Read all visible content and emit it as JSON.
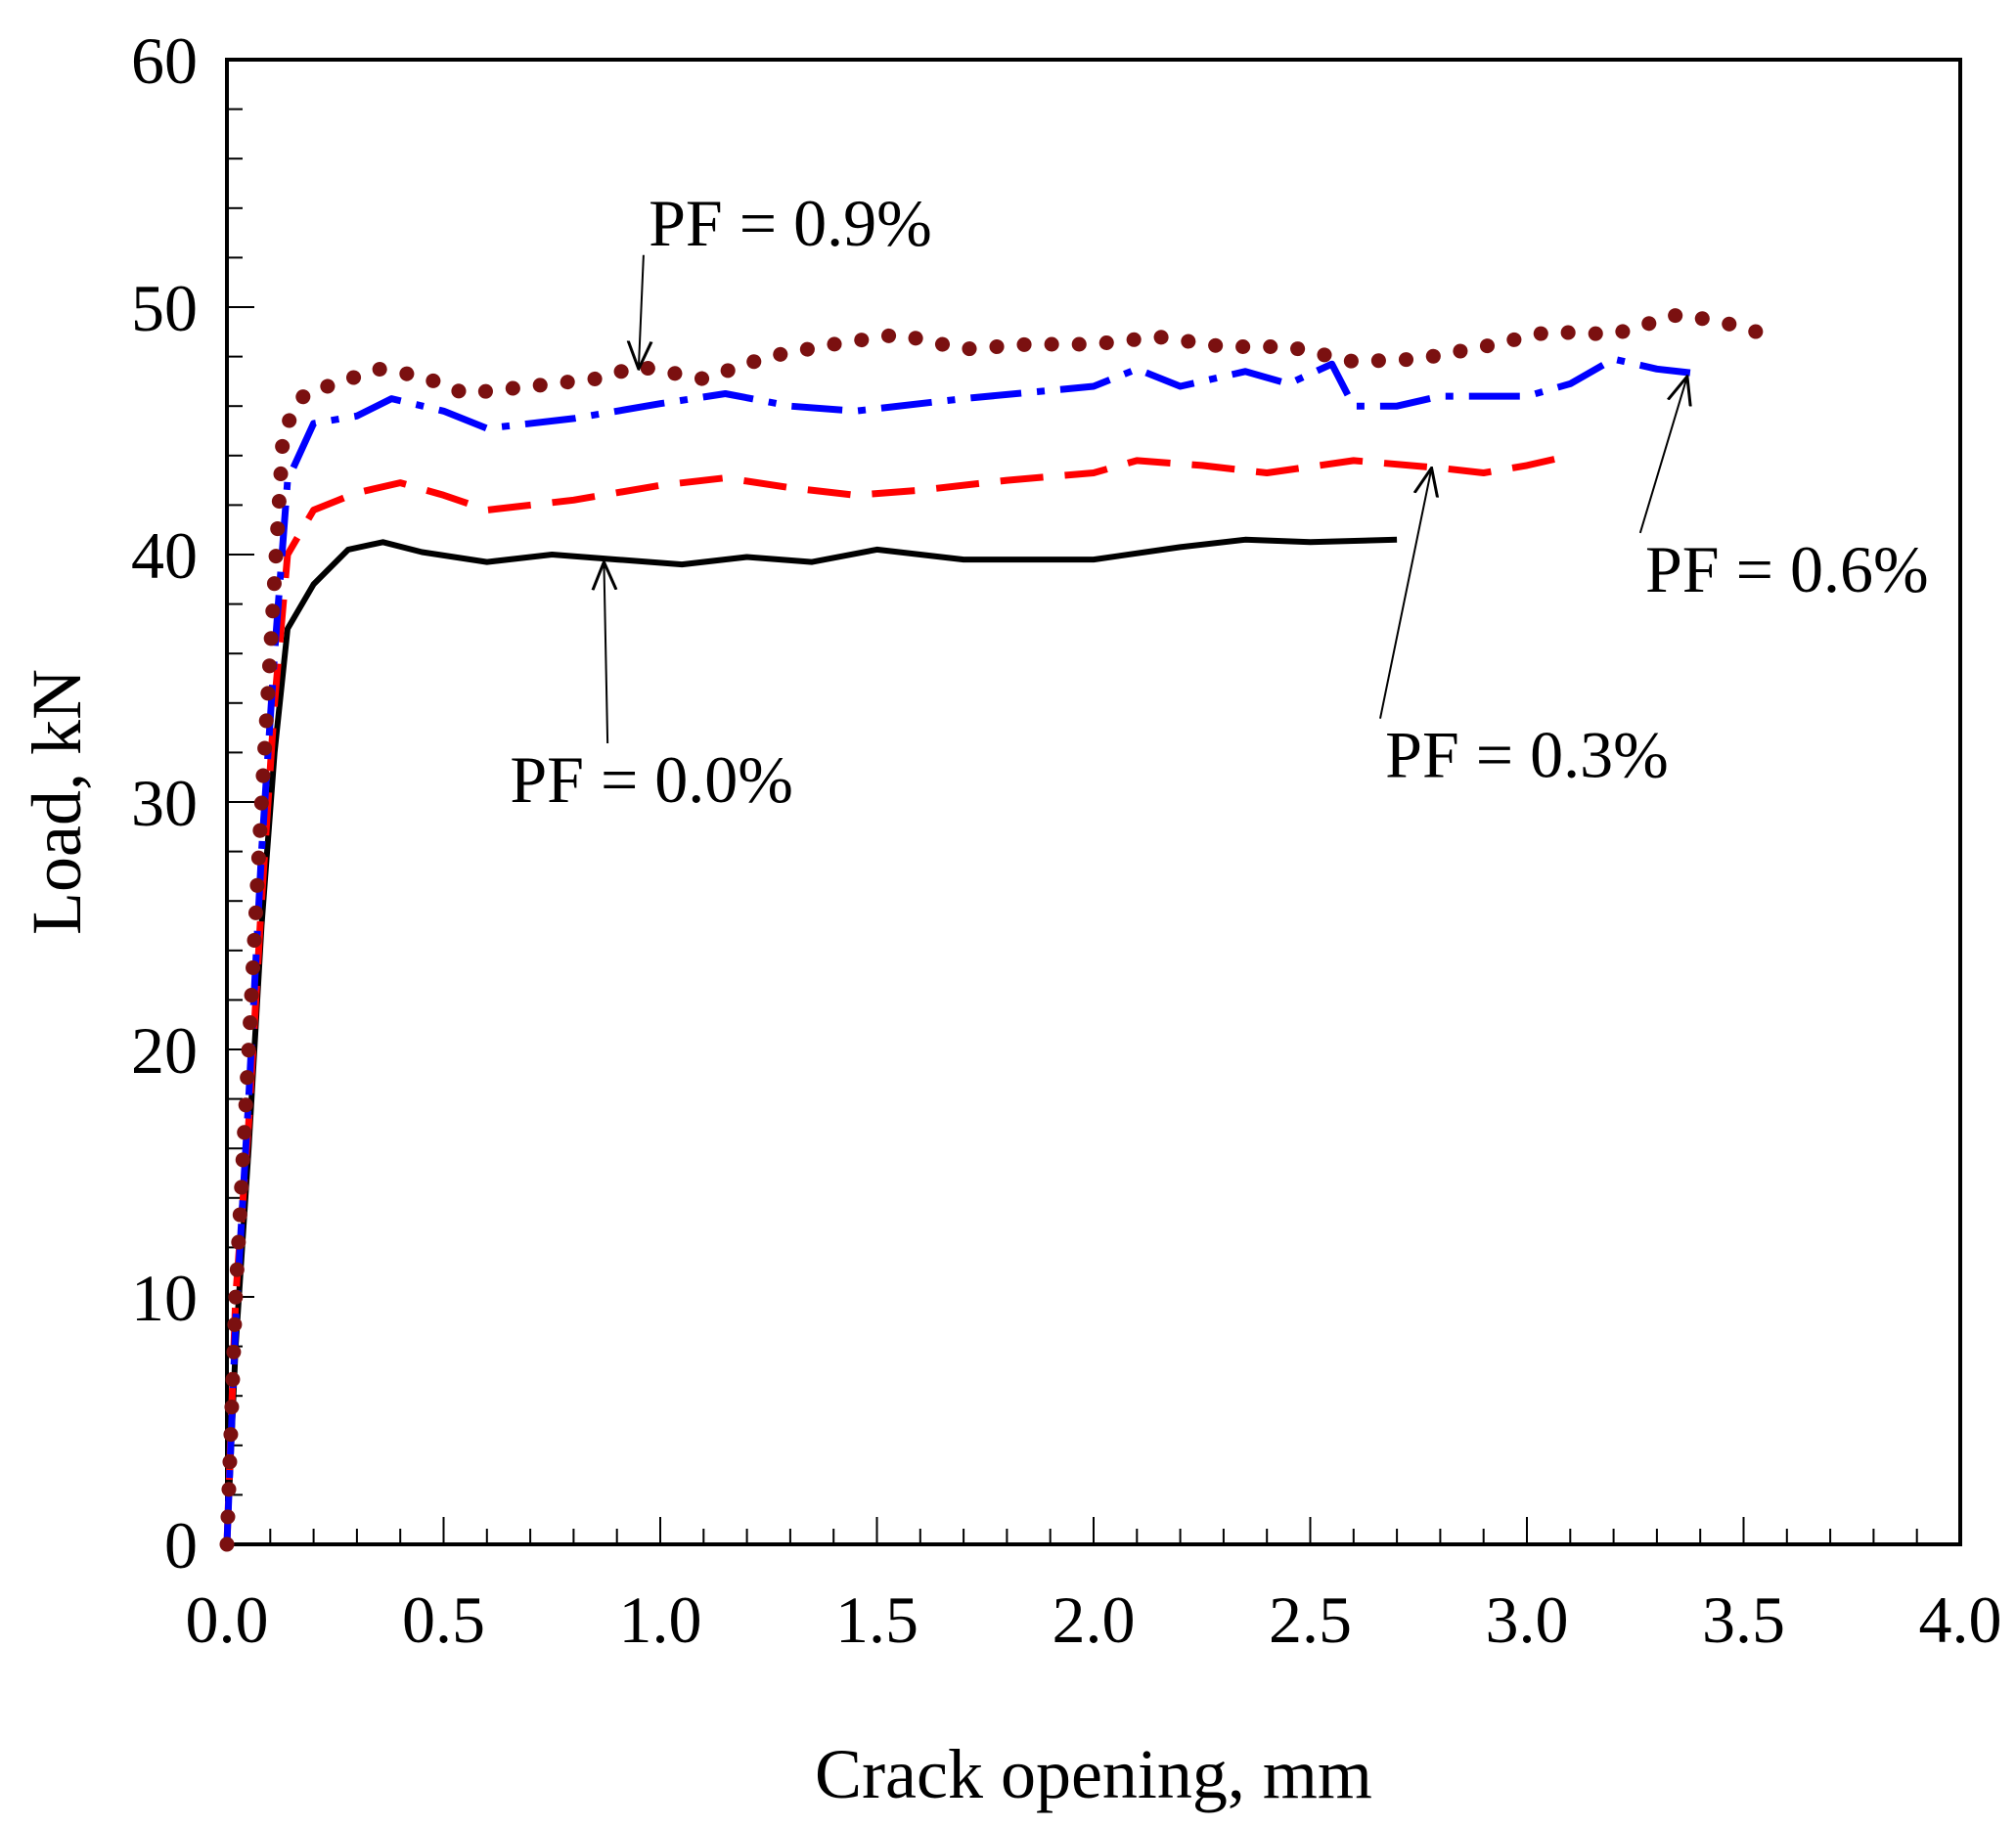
{
  "chart_data": {
    "type": "line",
    "title": "",
    "xlabel": "Crack opening, mm",
    "ylabel": "Load, kN",
    "xlim": [
      0.0,
      4.0
    ],
    "ylim": [
      0,
      60
    ],
    "x_ticks": [
      "0.0",
      "0.5",
      "1.0",
      "1.5",
      "2.0",
      "2.5",
      "3.0",
      "3.5",
      "4.0"
    ],
    "y_ticks": [
      "0",
      "10",
      "20",
      "30",
      "40",
      "50",
      "60"
    ],
    "grid": false,
    "series": [
      {
        "name": "PF = 0.0%",
        "color": "#000000",
        "style": "solid",
        "points": [
          [
            0,
            0
          ],
          [
            0.02,
            8
          ],
          [
            0.05,
            16
          ],
          [
            0.08,
            25
          ],
          [
            0.11,
            32
          ],
          [
            0.14,
            37
          ],
          [
            0.2,
            38.8
          ],
          [
            0.28,
            40.2
          ],
          [
            0.36,
            40.5
          ],
          [
            0.45,
            40.1
          ],
          [
            0.6,
            39.7
          ],
          [
            0.75,
            40.0
          ],
          [
            0.9,
            39.8
          ],
          [
            1.05,
            39.6
          ],
          [
            1.2,
            39.9
          ],
          [
            1.35,
            39.7
          ],
          [
            1.5,
            40.2
          ],
          [
            1.7,
            39.8
          ],
          [
            2.0,
            39.8
          ],
          [
            2.2,
            40.3
          ],
          [
            2.35,
            40.6
          ],
          [
            2.5,
            40.5
          ],
          [
            2.7,
            40.6
          ]
        ]
      },
      {
        "name": "PF = 0.3%",
        "color": "#ff0000",
        "style": "dashed",
        "points": [
          [
            0,
            0
          ],
          [
            0.02,
            10
          ],
          [
            0.05,
            17
          ],
          [
            0.08,
            26
          ],
          [
            0.11,
            34
          ],
          [
            0.14,
            40
          ],
          [
            0.2,
            41.8
          ],
          [
            0.3,
            42.5
          ],
          [
            0.4,
            42.9
          ],
          [
            0.5,
            42.4
          ],
          [
            0.6,
            41.8
          ],
          [
            0.8,
            42.2
          ],
          [
            1.0,
            42.8
          ],
          [
            1.15,
            43.1
          ],
          [
            1.3,
            42.7
          ],
          [
            1.45,
            42.4
          ],
          [
            1.6,
            42.6
          ],
          [
            1.8,
            43.0
          ],
          [
            2.0,
            43.3
          ],
          [
            2.1,
            43.8
          ],
          [
            2.25,
            43.6
          ],
          [
            2.4,
            43.3
          ],
          [
            2.6,
            43.8
          ],
          [
            2.8,
            43.5
          ],
          [
            2.9,
            43.3
          ],
          [
            3.0,
            43.6
          ],
          [
            3.1,
            44.0
          ]
        ]
      },
      {
        "name": "PF = 0.6%",
        "color": "#0000ff",
        "style": "dashdot",
        "points": [
          [
            0,
            0
          ],
          [
            0.02,
            9
          ],
          [
            0.05,
            18
          ],
          [
            0.08,
            28
          ],
          [
            0.11,
            36
          ],
          [
            0.14,
            43
          ],
          [
            0.2,
            45.3
          ],
          [
            0.3,
            45.6
          ],
          [
            0.38,
            46.3
          ],
          [
            0.5,
            45.8
          ],
          [
            0.6,
            45.1
          ],
          [
            0.8,
            45.5
          ],
          [
            1.0,
            46.1
          ],
          [
            1.15,
            46.5
          ],
          [
            1.3,
            46.0
          ],
          [
            1.45,
            45.8
          ],
          [
            1.7,
            46.3
          ],
          [
            2.0,
            46.8
          ],
          [
            2.1,
            47.5
          ],
          [
            2.2,
            46.8
          ],
          [
            2.35,
            47.4
          ],
          [
            2.45,
            46.9
          ],
          [
            2.55,
            47.7
          ],
          [
            2.6,
            46.0
          ],
          [
            2.7,
            46.0
          ],
          [
            2.8,
            46.4
          ],
          [
            3.0,
            46.4
          ],
          [
            3.1,
            46.9
          ],
          [
            3.2,
            47.9
          ],
          [
            3.3,
            47.5
          ],
          [
            3.4,
            47.3
          ]
        ]
      },
      {
        "name": "PF = 0.9%",
        "color": "#7b1010",
        "style": "dotted",
        "points": [
          [
            0,
            0
          ],
          [
            0.02,
            10
          ],
          [
            0.05,
            20
          ],
          [
            0.08,
            30
          ],
          [
            0.11,
            39
          ],
          [
            0.13,
            45
          ],
          [
            0.18,
            46.5
          ],
          [
            0.25,
            46.9
          ],
          [
            0.35,
            47.5
          ],
          [
            0.45,
            47.2
          ],
          [
            0.55,
            46.5
          ],
          [
            0.7,
            46.8
          ],
          [
            0.85,
            47.1
          ],
          [
            0.95,
            47.6
          ],
          [
            1.1,
            47.1
          ],
          [
            1.25,
            48.0
          ],
          [
            1.4,
            48.5
          ],
          [
            1.55,
            48.9
          ],
          [
            1.7,
            48.3
          ],
          [
            1.85,
            48.5
          ],
          [
            2.0,
            48.5
          ],
          [
            2.15,
            48.8
          ],
          [
            2.3,
            48.4
          ],
          [
            2.45,
            48.4
          ],
          [
            2.6,
            47.8
          ],
          [
            2.75,
            47.9
          ],
          [
            2.9,
            48.4
          ],
          [
            3.05,
            49.0
          ],
          [
            3.2,
            48.9
          ],
          [
            3.35,
            49.7
          ],
          [
            3.45,
            49.4
          ],
          [
            3.55,
            48.9
          ]
        ]
      }
    ],
    "annotations": [
      {
        "text": "PF = 0.9%",
        "arrow_to": [
          0.95,
          47.5
        ],
        "label_at": [
          1.3,
          52.5
        ]
      },
      {
        "text": "PF = 0.6%",
        "arrow_to": [
          3.37,
          47.2
        ],
        "label_at": [
          3.6,
          38.5
        ]
      },
      {
        "text": "PF = 0.3%",
        "arrow_to": [
          2.78,
          43.5
        ],
        "label_at": [
          3.0,
          31.0
        ]
      },
      {
        "text": "PF = 0.0%",
        "arrow_to": [
          0.87,
          39.7
        ],
        "label_at": [
          0.98,
          30.0
        ]
      }
    ]
  }
}
